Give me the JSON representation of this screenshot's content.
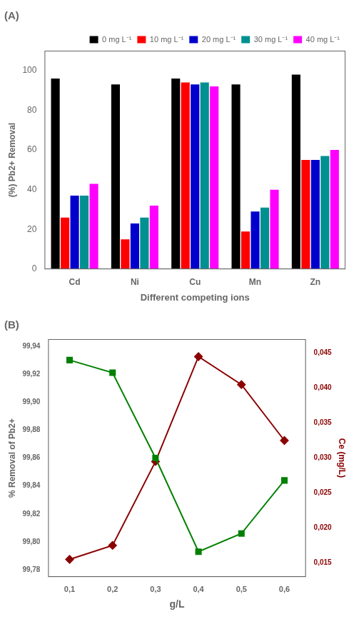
{
  "chart_data": [
    {
      "type": "bar",
      "title": "(A)",
      "categories": [
        "Cd",
        "Ni",
        "Cu",
        "Mn",
        "Zn"
      ],
      "series": [
        {
          "name": "0 mg L⁻¹",
          "color": "#000000",
          "values": [
            96,
            93,
            96,
            93,
            98
          ]
        },
        {
          "name": "10 mg L⁻¹",
          "color": "#ff0000",
          "values": [
            26,
            15,
            94,
            19,
            55
          ]
        },
        {
          "name": "20 mg L⁻¹",
          "color": "#0000cc",
          "values": [
            37,
            23,
            93,
            29,
            55
          ]
        },
        {
          "name": "30 mg L⁻¹",
          "color": "#009090",
          "values": [
            37,
            26,
            94,
            31,
            57
          ]
        },
        {
          "name": "40 mg L⁻¹",
          "color": "#ff00ff",
          "values": [
            43,
            32,
            92,
            40,
            60
          ]
        }
      ],
      "xlabel": "Different competing ions",
      "ylabel": "(%) Pb2+ Removal",
      "ylim": [
        0,
        110
      ],
      "yticks": [
        0,
        20,
        40,
        60,
        80,
        100
      ],
      "legend": "upper right",
      "grid": false
    },
    {
      "type": "line",
      "title": "(B)",
      "x": [
        0.1,
        0.2,
        0.3,
        0.4,
        0.5,
        0.6
      ],
      "series": [
        {
          "color": "#008000",
          "marker": "square",
          "axis": "y",
          "values": [
            99.93,
            99.921,
            99.86,
            99.793,
            99.806,
            99.844
          ]
        },
        {
          "color": "#8b0000",
          "marker": "diamond",
          "axis": "y2",
          "values": [
            0.0155,
            0.0175,
            0.0295,
            0.0445,
            0.0405,
            0.0325
          ]
        }
      ],
      "xlabel": "g/L",
      "ylabel": "% Removal of Pb2+",
      "y2label": "Ce (mg/L)",
      "xlim": [
        0.05,
        0.65
      ],
      "xticks": [
        {
          "value": 0.1,
          "label": "0,1"
        },
        {
          "value": 0.2,
          "label": "0,2"
        },
        {
          "value": 0.3,
          "label": "0,3"
        },
        {
          "value": 0.4,
          "label": "0,4"
        },
        {
          "value": 0.5,
          "label": "0,5"
        },
        {
          "value": 0.6,
          "label": "0,6"
        }
      ],
      "ylim": [
        99.775,
        99.945
      ],
      "yticks": [
        {
          "value": 99.78,
          "label": "99,78"
        },
        {
          "value": 99.8,
          "label": "99,80"
        },
        {
          "value": 99.82,
          "label": "99,82"
        },
        {
          "value": 99.84,
          "label": "99,84"
        },
        {
          "value": 99.86,
          "label": "99,86"
        },
        {
          "value": 99.88,
          "label": "99,88"
        },
        {
          "value": 99.9,
          "label": "99,90"
        },
        {
          "value": 99.92,
          "label": "99,92"
        },
        {
          "value": 99.94,
          "label": "99,94"
        }
      ],
      "y2lim": [
        0.013,
        0.047
      ],
      "y2ticks": [
        {
          "value": 0.015,
          "label": "0,015"
        },
        {
          "value": 0.02,
          "label": "0,020"
        },
        {
          "value": 0.025,
          "label": "0,025"
        },
        {
          "value": 0.03,
          "label": "0,030"
        },
        {
          "value": 0.035,
          "label": "0,035"
        },
        {
          "value": 0.04,
          "label": "0,040"
        },
        {
          "value": 0.045,
          "label": "0,045"
        }
      ],
      "grid": false
    }
  ]
}
